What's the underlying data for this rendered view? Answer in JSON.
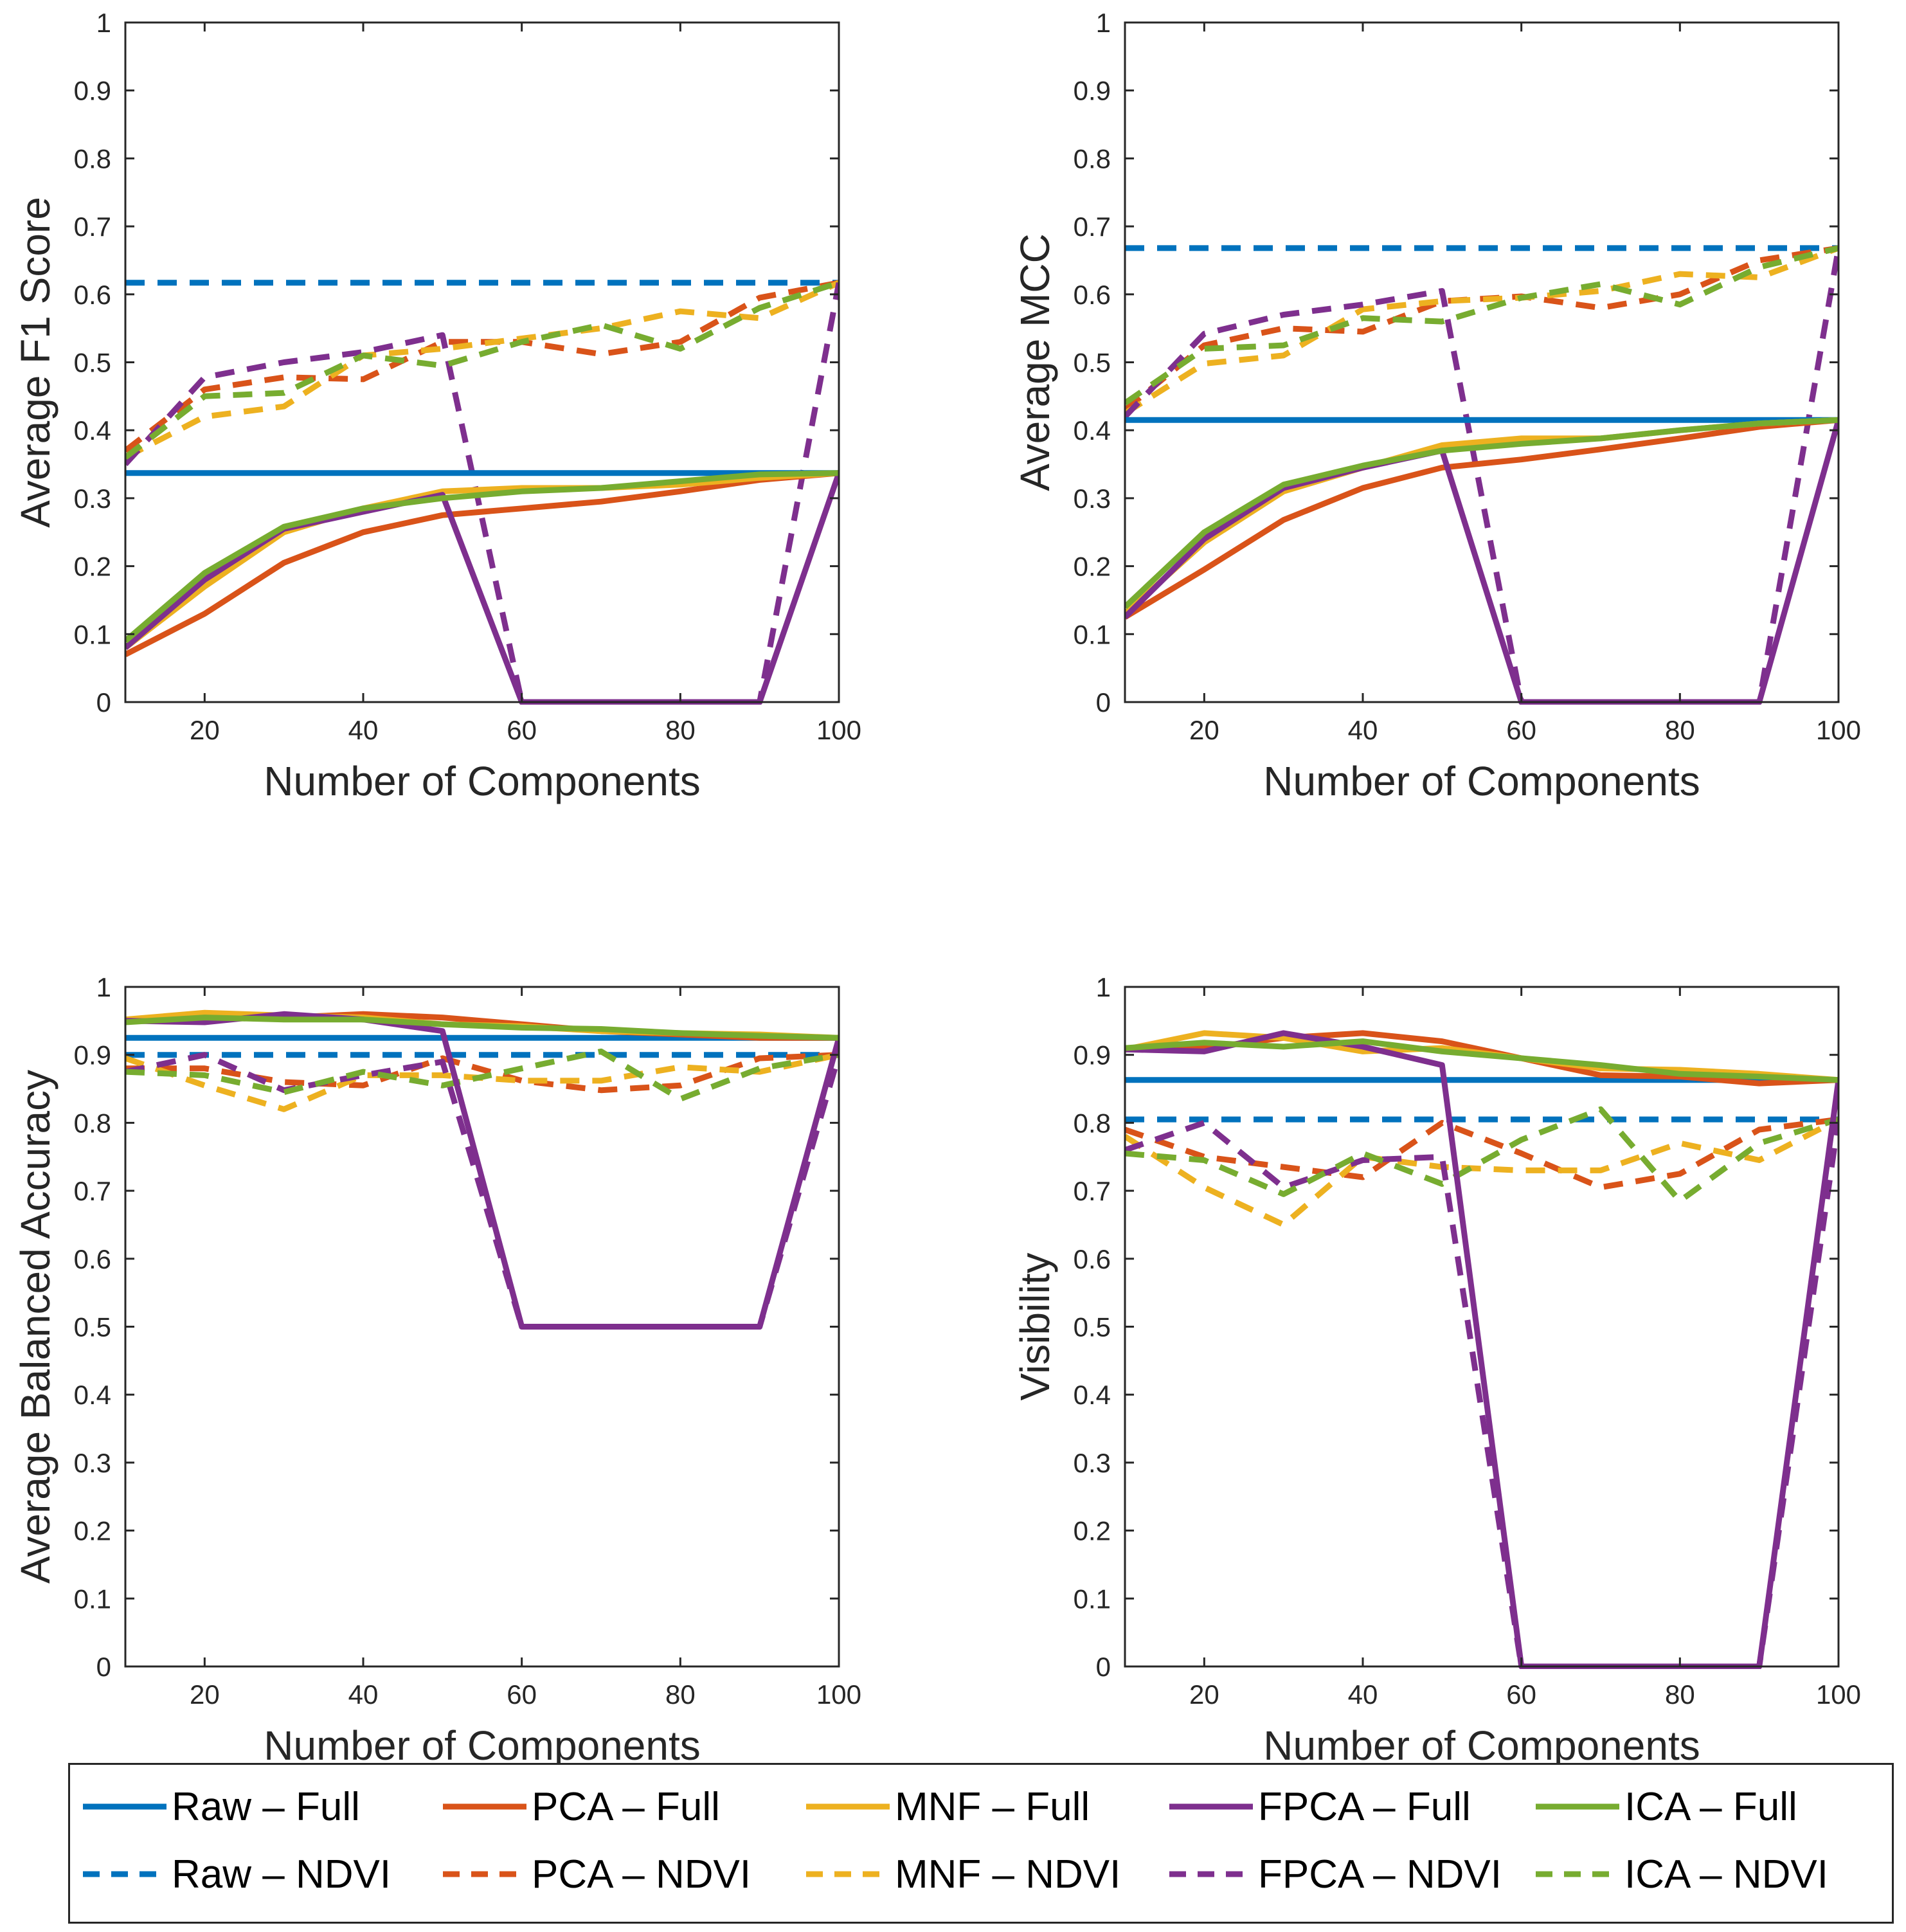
{
  "legend": [
    {
      "label": "Raw – Full",
      "color": "#0072BD",
      "dash": false
    },
    {
      "label": "PCA – Full",
      "color": "#D95319",
      "dash": false
    },
    {
      "label": "MNF – Full",
      "color": "#EDB120",
      "dash": false
    },
    {
      "label": "FPCA – Full",
      "color": "#7E2F8E",
      "dash": false
    },
    {
      "label": "ICA – Full",
      "color": "#77AC30",
      "dash": false
    },
    {
      "label": "Raw – NDVI",
      "color": "#0072BD",
      "dash": true
    },
    {
      "label": "PCA – NDVI",
      "color": "#D95319",
      "dash": true
    },
    {
      "label": "MNF – NDVI",
      "color": "#EDB120",
      "dash": true
    },
    {
      "label": "FPCA – NDVI",
      "color": "#7E2F8E",
      "dash": true
    },
    {
      "label": "ICA – NDVI",
      "color": "#77AC30",
      "dash": true
    }
  ],
  "chart_data": [
    {
      "type": "line",
      "xlabel": "Number of Components",
      "ylabel": "Average F1 Score",
      "xlim": [
        10,
        100
      ],
      "ylim": [
        0,
        1
      ],
      "xticks": [
        20,
        40,
        60,
        80,
        100
      ],
      "yticks": [
        0,
        0.1,
        0.2,
        0.3,
        0.4,
        0.5,
        0.6,
        0.7,
        0.8,
        0.9,
        1
      ],
      "ytick_labels": [
        "0",
        "0.1",
        "0.2",
        "0.3",
        "0.4",
        "0.5",
        "0.6",
        "0.7",
        "0.8",
        "0.9",
        "1"
      ],
      "x": [
        10,
        20,
        30,
        40,
        50,
        60,
        70,
        80,
        90,
        100
      ],
      "series": [
        {
          "name": "Raw – Full",
          "values": [
            0.337,
            0.337,
            0.337,
            0.337,
            0.337,
            0.337,
            0.337,
            0.337,
            0.337,
            0.337
          ]
        },
        {
          "name": "PCA – Full",
          "values": [
            0.07,
            0.13,
            0.205,
            0.25,
            0.275,
            0.285,
            0.295,
            0.31,
            0.327,
            0.337
          ]
        },
        {
          "name": "MNF – Full",
          "values": [
            0.08,
            0.17,
            0.25,
            0.285,
            0.31,
            0.315,
            0.315,
            0.32,
            0.33,
            0.337
          ]
        },
        {
          "name": "FPCA – Full",
          "values": [
            0.08,
            0.18,
            0.255,
            0.28,
            0.305,
            0,
            0,
            0,
            0,
            0.337
          ]
        },
        {
          "name": "ICA – Full",
          "values": [
            0.09,
            0.19,
            0.258,
            0.285,
            0.3,
            0.31,
            0.315,
            0.325,
            0.335,
            0.337
          ]
        },
        {
          "name": "Raw – NDVI",
          "values": [
            0.617,
            0.617,
            0.617,
            0.617,
            0.617,
            0.617,
            0.617,
            0.617,
            0.617,
            0.617
          ]
        },
        {
          "name": "PCA – NDVI",
          "values": [
            0.37,
            0.46,
            0.478,
            0.475,
            0.53,
            0.53,
            0.512,
            0.53,
            0.595,
            0.617
          ]
        },
        {
          "name": "MNF – NDVI",
          "values": [
            0.36,
            0.42,
            0.435,
            0.51,
            0.52,
            0.535,
            0.55,
            0.575,
            0.565,
            0.617
          ]
        },
        {
          "name": "FPCA – NDVI",
          "values": [
            0.35,
            0.478,
            0.5,
            0.515,
            0.54,
            0,
            0,
            0,
            0,
            0.617
          ]
        },
        {
          "name": "ICA – NDVI",
          "values": [
            0.36,
            0.45,
            0.455,
            0.51,
            0.495,
            0.53,
            0.555,
            0.52,
            0.58,
            0.617
          ]
        }
      ]
    },
    {
      "type": "line",
      "xlabel": "Number of Components",
      "ylabel": "Average MCC",
      "xlim": [
        10,
        100
      ],
      "ylim": [
        0,
        1
      ],
      "xticks": [
        20,
        40,
        60,
        80,
        100
      ],
      "yticks": [
        0,
        0.1,
        0.2,
        0.3,
        0.4,
        0.5,
        0.6,
        0.7,
        0.8,
        0.9,
        1
      ],
      "ytick_labels": [
        "0",
        "0.1",
        "0.2",
        "0.3",
        "0.4",
        "0.5",
        "0.6",
        "0.7",
        "0.8",
        "0.9",
        "1"
      ],
      "x": [
        10,
        20,
        30,
        40,
        50,
        60,
        70,
        80,
        90,
        100
      ],
      "series": [
        {
          "name": "Raw – Full",
          "values": [
            0.415,
            0.415,
            0.415,
            0.415,
            0.415,
            0.415,
            0.415,
            0.415,
            0.415,
            0.415
          ]
        },
        {
          "name": "PCA – Full",
          "values": [
            0.125,
            0.195,
            0.268,
            0.315,
            0.345,
            0.357,
            0.372,
            0.388,
            0.405,
            0.415
          ]
        },
        {
          "name": "MNF – Full",
          "values": [
            0.13,
            0.235,
            0.31,
            0.345,
            0.378,
            0.388,
            0.388,
            0.4,
            0.41,
            0.415
          ]
        },
        {
          "name": "FPCA – Full",
          "values": [
            0.125,
            0.24,
            0.315,
            0.345,
            0.37,
            0,
            0,
            0,
            0,
            0.415
          ]
        },
        {
          "name": "ICA – Full",
          "values": [
            0.14,
            0.25,
            0.32,
            0.348,
            0.37,
            0.38,
            0.388,
            0.4,
            0.41,
            0.415
          ]
        },
        {
          "name": "Raw – NDVI",
          "values": [
            0.668,
            0.668,
            0.668,
            0.668,
            0.668,
            0.668,
            0.668,
            0.668,
            0.668,
            0.668
          ]
        },
        {
          "name": "PCA – NDVI",
          "values": [
            0.43,
            0.525,
            0.55,
            0.545,
            0.59,
            0.597,
            0.58,
            0.6,
            0.65,
            0.668
          ]
        },
        {
          "name": "MNF – NDVI",
          "values": [
            0.425,
            0.498,
            0.51,
            0.578,
            0.59,
            0.595,
            0.605,
            0.63,
            0.625,
            0.668
          ]
        },
        {
          "name": "FPCA – NDVI",
          "values": [
            0.42,
            0.542,
            0.57,
            0.585,
            0.605,
            0,
            0,
            0,
            0,
            0.668
          ]
        },
        {
          "name": "ICA – NDVI",
          "values": [
            0.44,
            0.52,
            0.525,
            0.565,
            0.56,
            0.595,
            0.615,
            0.585,
            0.64,
            0.668
          ]
        }
      ]
    },
    {
      "type": "line",
      "xlabel": "Number of Components",
      "ylabel": "Average Balanced Accuracy",
      "xlim": [
        10,
        100
      ],
      "ylim": [
        0,
        1
      ],
      "xticks": [
        20,
        40,
        60,
        80,
        100
      ],
      "yticks": [
        0,
        0.1,
        0.2,
        0.3,
        0.4,
        0.5,
        0.6,
        0.7,
        0.8,
        0.9,
        1
      ],
      "ytick_labels": [
        "0",
        "0.1",
        "0.2",
        "0.3",
        "0.4",
        "0.5",
        "0.6",
        "0.7",
        "0.8",
        "0.9",
        "1"
      ],
      "x": [
        10,
        20,
        30,
        40,
        50,
        60,
        70,
        80,
        90,
        100
      ],
      "series": [
        {
          "name": "Raw – Full",
          "values": [
            0.925,
            0.925,
            0.925,
            0.925,
            0.925,
            0.925,
            0.925,
            0.925,
            0.925,
            0.925
          ]
        },
        {
          "name": "PCA – Full",
          "values": [
            0.95,
            0.955,
            0.955,
            0.96,
            0.955,
            0.945,
            0.935,
            0.93,
            0.925,
            0.925
          ]
        },
        {
          "name": "MNF – Full",
          "values": [
            0.952,
            0.962,
            0.958,
            0.955,
            0.945,
            0.942,
            0.935,
            0.932,
            0.93,
            0.925
          ]
        },
        {
          "name": "FPCA – Full",
          "values": [
            0.95,
            0.948,
            0.96,
            0.952,
            0.935,
            0.5,
            0.5,
            0.5,
            0.5,
            0.925
          ]
        },
        {
          "name": "ICA – Full",
          "values": [
            0.948,
            0.955,
            0.952,
            0.952,
            0.945,
            0.94,
            0.938,
            0.932,
            0.928,
            0.925
          ]
        },
        {
          "name": "Raw – NDVI",
          "values": [
            0.9,
            0.9,
            0.9,
            0.9,
            0.9,
            0.9,
            0.9,
            0.9,
            0.9,
            0.9
          ]
        },
        {
          "name": "PCA – NDVI",
          "values": [
            0.88,
            0.88,
            0.86,
            0.855,
            0.895,
            0.862,
            0.848,
            0.855,
            0.895,
            0.9
          ]
        },
        {
          "name": "MNF – NDVI",
          "values": [
            0.895,
            0.855,
            0.82,
            0.87,
            0.87,
            0.862,
            0.862,
            0.882,
            0.875,
            0.9
          ]
        },
        {
          "name": "FPCA – NDVI",
          "values": [
            0.875,
            0.9,
            0.848,
            0.87,
            0.89,
            0.5,
            0.5,
            0.5,
            0.5,
            0.9
          ]
        },
        {
          "name": "ICA – NDVI",
          "values": [
            0.875,
            0.87,
            0.845,
            0.875,
            0.855,
            0.88,
            0.905,
            0.835,
            0.88,
            0.9
          ]
        }
      ]
    },
    {
      "type": "line",
      "xlabel": "Number of Components",
      "ylabel": "Visibility",
      "xlim": [
        10,
        100
      ],
      "ylim": [
        0,
        1
      ],
      "xticks": [
        20,
        40,
        60,
        80,
        100
      ],
      "yticks": [
        0,
        0.1,
        0.2,
        0.3,
        0.4,
        0.5,
        0.6,
        0.7,
        0.8,
        0.9,
        1
      ],
      "ytick_labels": [
        "0",
        "0.1",
        "0.2",
        "0.3",
        "0.4",
        "0.5",
        "0.6",
        "0.7",
        "0.8",
        "0.9",
        "1"
      ],
      "x": [
        10,
        20,
        30,
        40,
        50,
        60,
        70,
        80,
        90,
        100
      ],
      "series": [
        {
          "name": "Raw – Full",
          "values": [
            0.863,
            0.863,
            0.863,
            0.863,
            0.863,
            0.863,
            0.863,
            0.863,
            0.863,
            0.863
          ]
        },
        {
          "name": "PCA – Full",
          "values": [
            0.908,
            0.91,
            0.925,
            0.932,
            0.92,
            0.895,
            0.87,
            0.868,
            0.858,
            0.863
          ]
        },
        {
          "name": "MNF – Full",
          "values": [
            0.908,
            0.932,
            0.925,
            0.905,
            0.91,
            0.895,
            0.88,
            0.878,
            0.872,
            0.863
          ]
        },
        {
          "name": "FPCA – Full",
          "values": [
            0.908,
            0.905,
            0.932,
            0.912,
            0.885,
            0,
            0,
            0,
            0,
            0.863
          ]
        },
        {
          "name": "ICA – Full",
          "values": [
            0.91,
            0.918,
            0.912,
            0.92,
            0.905,
            0.895,
            0.885,
            0.872,
            0.868,
            0.863
          ]
        },
        {
          "name": "Raw – NDVI",
          "values": [
            0.805,
            0.805,
            0.805,
            0.805,
            0.805,
            0.805,
            0.805,
            0.805,
            0.805,
            0.805
          ]
        },
        {
          "name": "PCA – NDVI",
          "values": [
            0.79,
            0.75,
            0.735,
            0.72,
            0.8,
            0.755,
            0.705,
            0.725,
            0.79,
            0.805
          ]
        },
        {
          "name": "MNF – NDVI",
          "values": [
            0.78,
            0.705,
            0.65,
            0.75,
            0.735,
            0.73,
            0.73,
            0.77,
            0.745,
            0.805
          ]
        },
        {
          "name": "FPCA – NDVI",
          "values": [
            0.76,
            0.8,
            0.705,
            0.745,
            0.75,
            0,
            0,
            0,
            0,
            0.805
          ]
        },
        {
          "name": "ICA – NDVI",
          "values": [
            0.755,
            0.745,
            0.695,
            0.755,
            0.71,
            0.775,
            0.82,
            0.685,
            0.77,
            0.805
          ]
        }
      ]
    }
  ]
}
